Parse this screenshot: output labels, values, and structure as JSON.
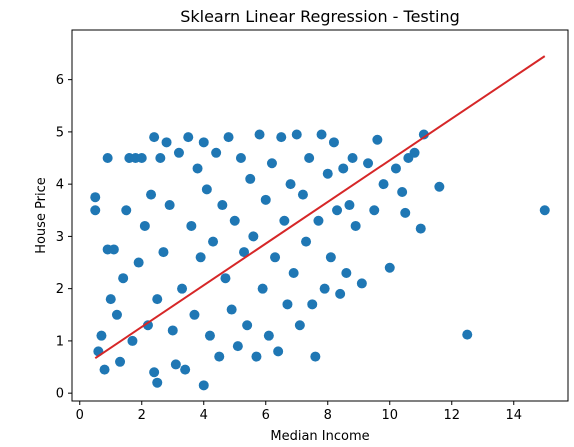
{
  "chart_data": {
    "type": "scatter",
    "title": "Sklearn Linear Regression - Testing",
    "xlabel": "Median Income",
    "ylabel": "House Price",
    "xlim": [
      -0.25,
      15.75
    ],
    "ylim": [
      -0.15,
      6.95
    ],
    "xticks": [
      0,
      2,
      4,
      6,
      8,
      10,
      12,
      14
    ],
    "yticks": [
      0,
      1,
      2,
      3,
      4,
      5,
      6
    ],
    "grid": false,
    "legend": "none",
    "series": [
      {
        "kind": "scatter",
        "color": "#1f77b4",
        "points": [
          [
            0.5,
            3.75
          ],
          [
            0.5,
            3.5
          ],
          [
            0.6,
            0.8
          ],
          [
            0.7,
            1.1
          ],
          [
            0.8,
            0.45
          ],
          [
            0.9,
            2.75
          ],
          [
            0.9,
            4.5
          ],
          [
            1.0,
            1.8
          ],
          [
            1.1,
            2.75
          ],
          [
            1.2,
            1.5
          ],
          [
            1.3,
            0.6
          ],
          [
            1.4,
            2.2
          ],
          [
            1.5,
            3.5
          ],
          [
            1.6,
            4.5
          ],
          [
            1.7,
            1.0
          ],
          [
            1.8,
            4.5
          ],
          [
            1.9,
            2.5
          ],
          [
            2.0,
            4.5
          ],
          [
            2.1,
            3.2
          ],
          [
            2.2,
            1.3
          ],
          [
            2.3,
            3.8
          ],
          [
            2.4,
            0.4
          ],
          [
            2.4,
            4.9
          ],
          [
            2.5,
            0.2
          ],
          [
            2.5,
            1.8
          ],
          [
            2.6,
            4.5
          ],
          [
            2.7,
            2.7
          ],
          [
            2.8,
            4.8
          ],
          [
            2.9,
            3.6
          ],
          [
            3.0,
            1.2
          ],
          [
            3.1,
            0.55
          ],
          [
            3.2,
            4.6
          ],
          [
            3.3,
            2.0
          ],
          [
            3.4,
            0.45
          ],
          [
            3.5,
            4.9
          ],
          [
            3.6,
            3.2
          ],
          [
            3.7,
            1.5
          ],
          [
            3.8,
            4.3
          ],
          [
            3.9,
            2.6
          ],
          [
            4.0,
            0.15
          ],
          [
            4.0,
            4.8
          ],
          [
            4.1,
            3.9
          ],
          [
            4.2,
            1.1
          ],
          [
            4.3,
            2.9
          ],
          [
            4.4,
            4.6
          ],
          [
            4.5,
            0.7
          ],
          [
            4.6,
            3.6
          ],
          [
            4.7,
            2.2
          ],
          [
            4.8,
            4.9
          ],
          [
            4.9,
            1.6
          ],
          [
            5.0,
            3.3
          ],
          [
            5.1,
            0.9
          ],
          [
            5.2,
            4.5
          ],
          [
            5.3,
            2.7
          ],
          [
            5.4,
            1.3
          ],
          [
            5.5,
            4.1
          ],
          [
            5.6,
            3.0
          ],
          [
            5.7,
            0.7
          ],
          [
            5.8,
            4.95
          ],
          [
            5.9,
            2.0
          ],
          [
            6.0,
            3.7
          ],
          [
            6.1,
            1.1
          ],
          [
            6.2,
            4.4
          ],
          [
            6.3,
            2.6
          ],
          [
            6.4,
            0.8
          ],
          [
            6.5,
            4.9
          ],
          [
            6.6,
            3.3
          ],
          [
            6.7,
            1.7
          ],
          [
            6.8,
            4.0
          ],
          [
            6.9,
            2.3
          ],
          [
            7.0,
            4.95
          ],
          [
            7.1,
            1.3
          ],
          [
            7.2,
            3.8
          ],
          [
            7.3,
            2.9
          ],
          [
            7.4,
            4.5
          ],
          [
            7.5,
            1.7
          ],
          [
            7.6,
            0.7
          ],
          [
            7.7,
            3.3
          ],
          [
            7.8,
            4.95
          ],
          [
            7.9,
            2.0
          ],
          [
            8.0,
            4.2
          ],
          [
            8.1,
            2.6
          ],
          [
            8.2,
            4.8
          ],
          [
            8.3,
            3.5
          ],
          [
            8.4,
            1.9
          ],
          [
            8.5,
            4.3
          ],
          [
            8.6,
            2.3
          ],
          [
            8.7,
            3.6
          ],
          [
            8.8,
            4.5
          ],
          [
            8.9,
            3.2
          ],
          [
            9.1,
            2.1
          ],
          [
            9.3,
            4.4
          ],
          [
            9.5,
            3.5
          ],
          [
            9.6,
            4.85
          ],
          [
            9.8,
            4.0
          ],
          [
            10.0,
            2.4
          ],
          [
            10.2,
            4.3
          ],
          [
            10.4,
            3.85
          ],
          [
            10.5,
            3.45
          ],
          [
            10.6,
            4.5
          ],
          [
            10.8,
            4.6
          ],
          [
            11.0,
            3.15
          ],
          [
            11.1,
            4.95
          ],
          [
            11.6,
            3.95
          ],
          [
            12.5,
            1.12
          ],
          [
            15.0,
            3.5
          ]
        ]
      },
      {
        "kind": "line",
        "color": "#d62728",
        "points": [
          [
            0.5,
            0.67
          ],
          [
            15.0,
            6.45
          ]
        ]
      }
    ]
  }
}
